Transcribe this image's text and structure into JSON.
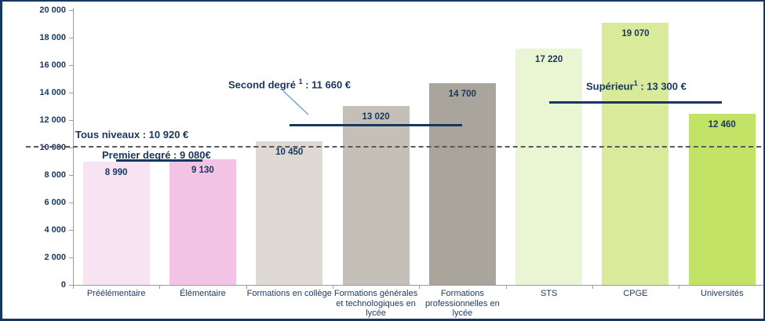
{
  "chart_data": {
    "type": "bar",
    "title": "",
    "xlabel": "",
    "ylabel": "",
    "ylim": [
      0,
      20000
    ],
    "ytick_step": 2000,
    "ytick_labels": [
      "0",
      "2 000",
      "4 000",
      "6 000",
      "8 000",
      "10 000",
      "12 000",
      "14 000",
      "16 000",
      "18 000",
      "20 000"
    ],
    "grid": false,
    "legend": "none",
    "categories": [
      "Préélémentaire",
      "Élémentaire",
      "Formations en collège",
      "Formations générales et technologiques en lycée",
      "Formations professionnelles en lycée",
      "STS",
      "CPGE",
      "Universités"
    ],
    "values": [
      8990,
      9130,
      10450,
      13020,
      14700,
      17220,
      19070,
      12460
    ],
    "value_labels": [
      "8 990",
      "9 130",
      "10 450",
      "13 020",
      "14 700",
      "17 220",
      "19 070",
      "12 460"
    ],
    "bar_colors": [
      "#f8e3f2",
      "#f2c3e5",
      "#dedad3",
      "#c5c0b7",
      "#a9a59d",
      "#eaf5d3",
      "#d9eb9b",
      "#c2e365"
    ],
    "annotations": {
      "tous_niveaux": {
        "label": "Tous niveaux : 10 920 €",
        "value": 10920,
        "line": "dashed"
      },
      "premier_degre": {
        "label": "Premier degré : 9 080€",
        "value": 9080,
        "span_bars": [
          0,
          1
        ],
        "line": "solid"
      },
      "second_degre": {
        "pre": "Second degré ",
        "sup": "1",
        "post": " : 11 660 €",
        "value": 11660,
        "span_bars": [
          2,
          4
        ],
        "line": "solid"
      },
      "superieur": {
        "pre": "Supérieur",
        "sup": "1",
        "post": " : 13 300 €",
        "value": 13300,
        "span_bars": [
          5,
          7
        ],
        "line": "solid"
      }
    },
    "colors": {
      "navy": "#17375e",
      "axis_gray": "#9c9c9c",
      "dashed_gray": "#595959",
      "leader_blue": "#6fa8dc",
      "background": "#ffffff"
    }
  }
}
